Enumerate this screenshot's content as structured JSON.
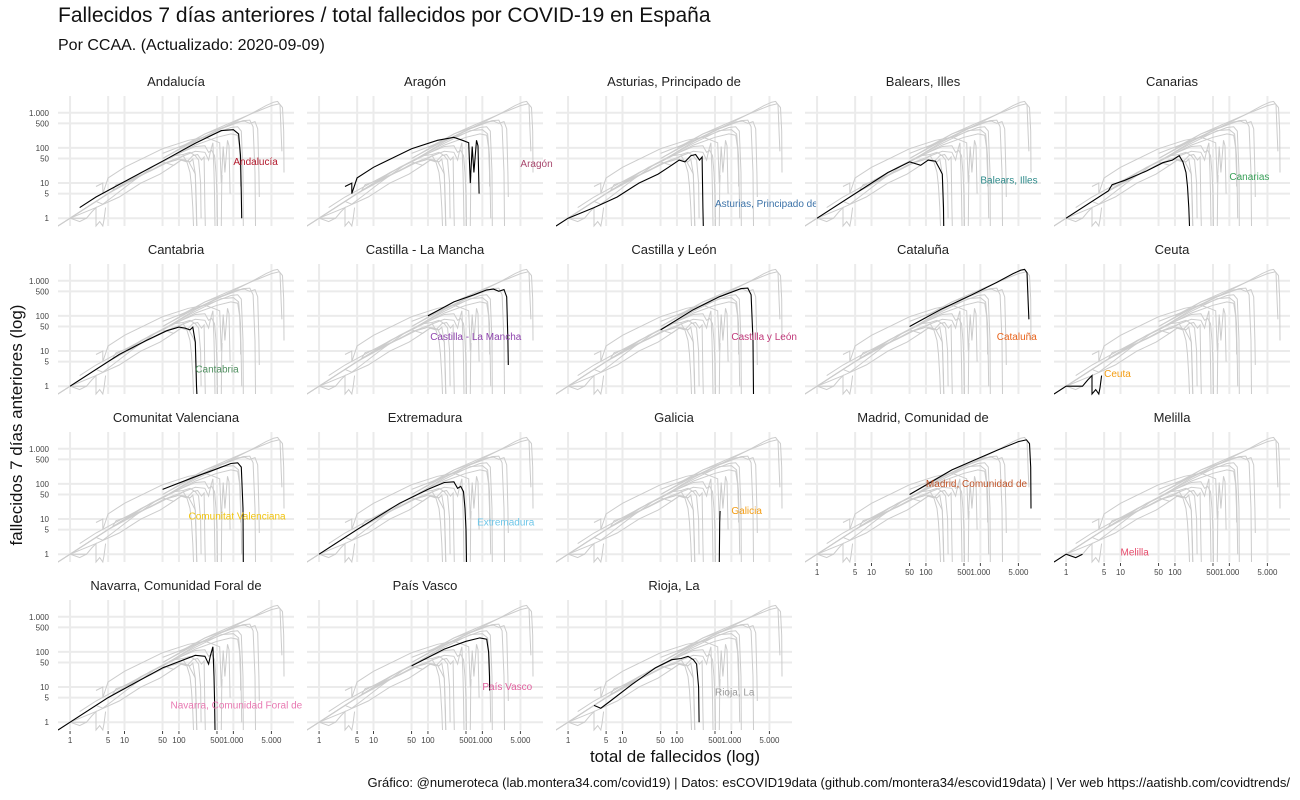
{
  "title": "Fallecidos 7 días anteriores / total fallecidos por COVID-19 en España",
  "subtitle": "Por CCAA. (Actualizado: 2020-09-09)",
  "caption": "Gráfico: @numeroteca (lab.montera34.com/covid19) | Datos: esCOVID19data (github.com/montera34/escovid19data) | Ver web https://aatishb.com/covidtrends/",
  "chart_data": {
    "type": "line",
    "xlabel": "total de fallecidos (log)",
    "ylabel": "fallecidos 7 días anteriores (log)",
    "x_scale": "log",
    "y_scale": "log",
    "x_ticks": [
      1,
      5,
      10,
      50,
      100,
      500,
      1000,
      5000
    ],
    "x_tick_labels": [
      "1",
      "5",
      "10",
      "50",
      "100",
      "500",
      "1.000",
      "5.000"
    ],
    "y_ticks": [
      1,
      5,
      10,
      50,
      100,
      500,
      1000
    ],
    "y_tick_labels": [
      "1",
      "5",
      "10",
      "50",
      "100",
      "500",
      "1.000"
    ],
    "xlim": [
      0.6,
      13000
    ],
    "ylim": [
      0.6,
      3000
    ],
    "grid": true,
    "background_series_color": "#cccccc",
    "highlight_color": "#000000",
    "panels": [
      {
        "name": "Andalucía",
        "label": "Andalucía",
        "color": "#b2182b",
        "label_at": [
          1000,
          40
        ],
        "points": [
          [
            1.5,
            2
          ],
          [
            3,
            4
          ],
          [
            10,
            11
          ],
          [
            50,
            42
          ],
          [
            200,
            135
          ],
          [
            600,
            310
          ],
          [
            1000,
            330
          ],
          [
            1250,
            250
          ],
          [
            1350,
            60
          ],
          [
            1400,
            5
          ],
          [
            1420,
            1
          ]
        ]
      },
      {
        "name": "Aragón",
        "label": "Aragón",
        "color": "#a8476d",
        "label_at": [
          5000,
          35
        ],
        "points": [
          [
            3,
            8
          ],
          [
            4,
            10
          ],
          [
            4,
            5
          ],
          [
            5,
            14
          ],
          [
            10,
            28
          ],
          [
            50,
            95
          ],
          [
            150,
            165
          ],
          [
            300,
            200
          ],
          [
            450,
            160
          ],
          [
            560,
            140
          ],
          [
            600,
            10
          ],
          [
            650,
            110
          ],
          [
            700,
            20
          ],
          [
            780,
            165
          ],
          [
            830,
            115
          ],
          [
            870,
            5
          ]
        ]
      },
      {
        "name": "Asturias, Principado de",
        "label": "Asturias, Principado de",
        "color": "#3d73a8",
        "label_at": [
          500,
          2.5
        ],
        "points": [
          [
            0.6,
            0.6
          ],
          [
            1,
            1
          ],
          [
            3,
            2
          ],
          [
            8,
            4
          ],
          [
            20,
            10
          ],
          [
            45,
            18
          ],
          [
            70,
            28
          ],
          [
            110,
            45
          ],
          [
            140,
            40
          ],
          [
            180,
            60
          ],
          [
            220,
            65
          ],
          [
            260,
            45
          ],
          [
            290,
            55
          ],
          [
            300,
            2
          ],
          [
            305,
            0.6
          ]
        ]
      },
      {
        "name": "Balears, Illes",
        "label": "Balears, Illes",
        "color": "#2e8b8b",
        "label_at": [
          1000,
          12
        ],
        "points": [
          [
            1,
            1
          ],
          [
            3,
            3
          ],
          [
            8,
            8
          ],
          [
            20,
            20
          ],
          [
            50,
            40
          ],
          [
            80,
            32
          ],
          [
            110,
            45
          ],
          [
            150,
            42
          ],
          [
            180,
            25
          ],
          [
            200,
            18
          ],
          [
            210,
            2
          ],
          [
            212,
            0.6
          ]
        ]
      },
      {
        "name": "Canarias",
        "label": "Canarias",
        "color": "#3aa15a",
        "label_at": [
          1000,
          15
        ],
        "points": [
          [
            1,
            1
          ],
          [
            3,
            3
          ],
          [
            6,
            6
          ],
          [
            7,
            9
          ],
          [
            12,
            12
          ],
          [
            30,
            22
          ],
          [
            60,
            38
          ],
          [
            90,
            45
          ],
          [
            120,
            60
          ],
          [
            140,
            40
          ],
          [
            150,
            28
          ],
          [
            160,
            20
          ],
          [
            170,
            8
          ],
          [
            180,
            2
          ],
          [
            185,
            0.6
          ]
        ]
      },
      {
        "name": "Cantabria",
        "label": "Cantabria",
        "color": "#4f8f5f",
        "label_at": [
          200,
          3
        ],
        "points": [
          [
            1,
            1
          ],
          [
            3,
            3
          ],
          [
            8,
            8
          ],
          [
            25,
            20
          ],
          [
            60,
            38
          ],
          [
            100,
            48
          ],
          [
            130,
            45
          ],
          [
            160,
            40
          ],
          [
            180,
            48
          ],
          [
            200,
            18
          ],
          [
            210,
            1
          ],
          [
            214,
            0.6
          ]
        ]
      },
      {
        "name": "Castilla - La Mancha",
        "label": "Castilla - La Mancha",
        "color": "#8e44ad",
        "label_at": [
          110,
          25
        ],
        "points": [
          [
            100,
            100
          ],
          [
            300,
            250
          ],
          [
            700,
            400
          ],
          [
            1200,
            550
          ],
          [
            1600,
            580
          ],
          [
            2000,
            500
          ],
          [
            2500,
            560
          ],
          [
            2800,
            350
          ],
          [
            2950,
            20
          ],
          [
            3000,
            4
          ]
        ]
      },
      {
        "name": "Castilla y León",
        "label": "Castilla y León",
        "color": "#c0397a",
        "label_at": [
          1000,
          25
        ],
        "points": [
          [
            50,
            40
          ],
          [
            200,
            150
          ],
          [
            600,
            350
          ],
          [
            1500,
            600
          ],
          [
            2000,
            620
          ],
          [
            2300,
            400
          ],
          [
            2500,
            20
          ],
          [
            2550,
            0.6
          ]
        ]
      },
      {
        "name": "Cataluña",
        "label": "Cataluña",
        "color": "#e8641c",
        "label_at": [
          2000,
          25
        ],
        "points": [
          [
            50,
            50
          ],
          [
            200,
            160
          ],
          [
            700,
            400
          ],
          [
            2000,
            900
          ],
          [
            4000,
            1600
          ],
          [
            5500,
            2000
          ],
          [
            6500,
            2100
          ],
          [
            7200,
            1700
          ],
          [
            7600,
            200
          ],
          [
            7800,
            80
          ]
        ]
      },
      {
        "name": "Ceuta",
        "label": "Ceuta",
        "color": "#f39c12",
        "label_at": [
          5,
          2.2
        ],
        "points": [
          [
            0.6,
            0.6
          ],
          [
            1,
            1
          ],
          [
            2,
            1
          ],
          [
            2.5,
            1.5
          ],
          [
            3,
            2
          ],
          [
            3,
            0.6
          ],
          [
            3.5,
            0.8
          ],
          [
            4,
            0.6
          ],
          [
            4.2,
            0.9
          ],
          [
            4.5,
            2
          ]
        ]
      },
      {
        "name": "Comunitat Valenciana",
        "label": "Comunitat Valenciana",
        "color": "#f1c40f",
        "label_at": [
          150,
          12
        ],
        "points": [
          [
            50,
            70
          ],
          [
            200,
            160
          ],
          [
            500,
            270
          ],
          [
            900,
            380
          ],
          [
            1200,
            400
          ],
          [
            1400,
            300
          ],
          [
            1500,
            20
          ],
          [
            1520,
            0.6
          ]
        ]
      },
      {
        "name": "Extremadura",
        "label": "Extremadura",
        "color": "#6ec6e8",
        "label_at": [
          800,
          8
        ],
        "points": [
          [
            1,
            1
          ],
          [
            5,
            5
          ],
          [
            30,
            28
          ],
          [
            100,
            70
          ],
          [
            200,
            110
          ],
          [
            300,
            115
          ],
          [
            350,
            75
          ],
          [
            400,
            85
          ],
          [
            450,
            60
          ],
          [
            480,
            20
          ],
          [
            500,
            5
          ],
          [
            510,
            0.6
          ]
        ]
      },
      {
        "name": "Galicia",
        "label": "Galicia",
        "color": "#f39c12",
        "label_at": [
          1000,
          17
        ],
        "points": [
          [
            600,
            0.6
          ],
          [
            610,
            8
          ],
          [
            620,
            17
          ]
        ]
      },
      {
        "name": "Madrid, Comunidad de",
        "label": "Madrid, Comunidad de",
        "color": "#c0562b",
        "label_at": [
          100,
          100
        ],
        "points": [
          [
            50,
            50
          ],
          [
            300,
            250
          ],
          [
            2000,
            900
          ],
          [
            5000,
            1600
          ],
          [
            7000,
            1800
          ],
          [
            8000,
            1400
          ],
          [
            8400,
            300
          ],
          [
            8500,
            20
          ]
        ]
      },
      {
        "name": "Melilla",
        "label": "Melilla",
        "color": "#e74c6c",
        "label_at": [
          10,
          1.1
        ],
        "points": [
          [
            0.6,
            0.6
          ],
          [
            1,
            1
          ],
          [
            1.5,
            0.8
          ],
          [
            2,
            1
          ]
        ]
      },
      {
        "name": "Navarra, Comunidad Foral de",
        "label": "Navarra, Comunidad Foral de",
        "color": "#e879b2",
        "label_at": [
          70,
          3
        ],
        "points": [
          [
            0.6,
            0.6
          ],
          [
            1,
            1
          ],
          [
            5,
            5
          ],
          [
            50,
            35
          ],
          [
            200,
            80
          ],
          [
            300,
            75
          ],
          [
            350,
            45
          ],
          [
            380,
            80
          ],
          [
            420,
            140
          ],
          [
            440,
            20
          ],
          [
            450,
            5
          ],
          [
            460,
            0.6
          ]
        ]
      },
      {
        "name": "País Vasco",
        "label": "País Vasco",
        "color": "#e0609e",
        "label_at": [
          1000,
          10
        ],
        "points": [
          [
            50,
            40
          ],
          [
            200,
            120
          ],
          [
            500,
            200
          ],
          [
            900,
            250
          ],
          [
            1200,
            230
          ],
          [
            1300,
            100
          ],
          [
            1350,
            20
          ],
          [
            1360,
            8
          ]
        ]
      },
      {
        "name": "Rioja, La",
        "label": "Rioja, La",
        "color": "#999999",
        "label_at": [
          500,
          7
        ],
        "points": [
          [
            3,
            3
          ],
          [
            4,
            2.5
          ],
          [
            6,
            4
          ],
          [
            15,
            12
          ],
          [
            40,
            35
          ],
          [
            80,
            60
          ],
          [
            120,
            65
          ],
          [
            160,
            75
          ],
          [
            200,
            60
          ],
          [
            230,
            45
          ],
          [
            250,
            10
          ],
          [
            255,
            1
          ]
        ]
      }
    ]
  }
}
